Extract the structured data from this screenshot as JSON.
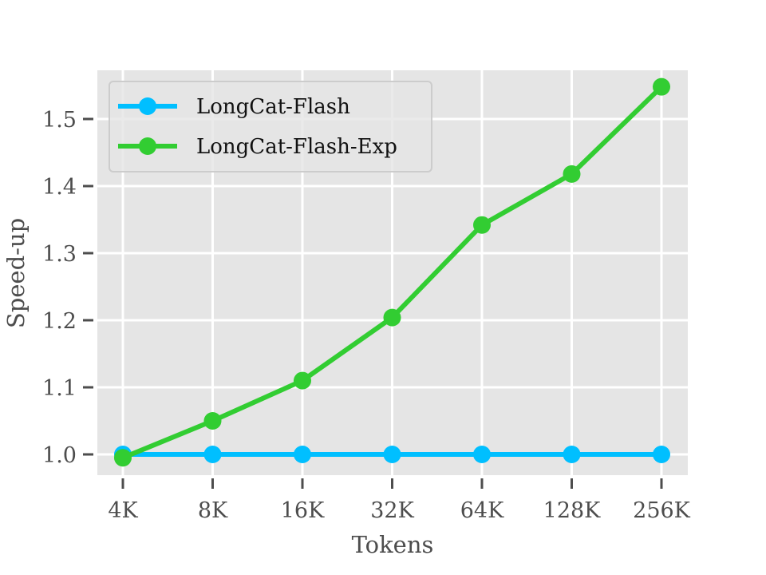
{
  "chart_data": {
    "type": "line",
    "title": "",
    "xlabel": "Tokens",
    "ylabel": "Speed-up",
    "categories": [
      "4K",
      "8K",
      "16K",
      "32K",
      "64K",
      "128K",
      "256K"
    ],
    "series": [
      {
        "name": "LongCat-Flash",
        "color": "#00BFFF",
        "values": [
          1.0,
          1.0,
          1.0,
          1.0,
          1.0,
          1.0,
          1.0
        ]
      },
      {
        "name": "LongCat-Flash-Exp",
        "color": "#32CD32",
        "values": [
          0.995,
          1.05,
          1.11,
          1.204,
          1.342,
          1.418,
          1.548
        ]
      }
    ],
    "yticks": [
      1.0,
      1.1,
      1.2,
      1.3,
      1.4,
      1.5
    ],
    "ytick_labels": [
      "1.0",
      "1.1",
      "1.2",
      "1.3",
      "1.4",
      "1.5"
    ],
    "ylim": [
      0.967,
      1.571
    ],
    "grid": true,
    "legend_position": "upper left",
    "background": "#E5E5E5"
  }
}
